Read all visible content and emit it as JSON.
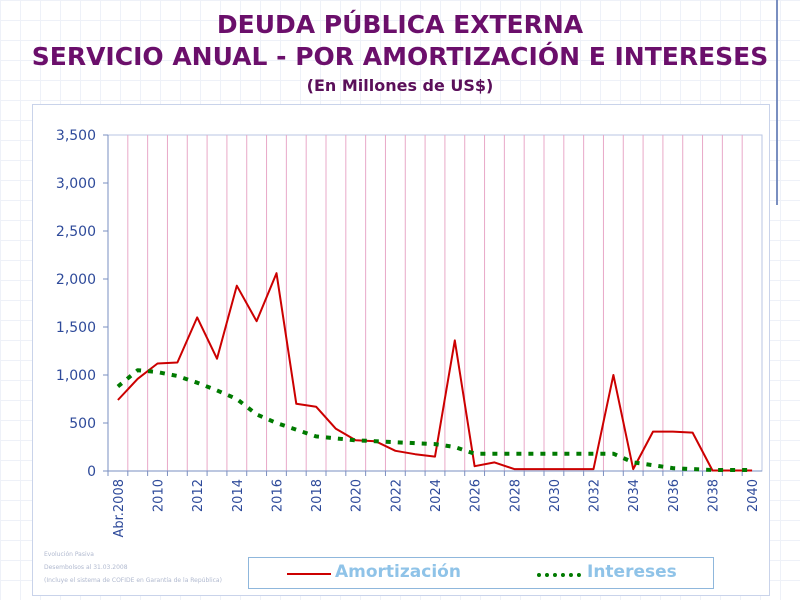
{
  "title_line1": "DEUDA PÚBLICA EXTERNA",
  "title_line2": "SERVICIO ANUAL - POR AMORTIZACIÓN E INTERESES",
  "subtitle": "(En Millones de US$)",
  "footnotes": [
    "Evolución Pasiva",
    "Desembolsos al 31.03.2008",
    "(Incluye el sistema de COFIDE en Garantía de la República)"
  ],
  "chart_data": {
    "type": "line",
    "title": "SERVICIO ANUAL - POR AMORTIZACIÓN E INTERESES",
    "ylabel": "(En Millones de US$)",
    "ylim": [
      0,
      3500
    ],
    "yticks": [
      0,
      500,
      1000,
      1500,
      2000,
      2500,
      3000,
      3500
    ],
    "ytick_labels": [
      "0",
      "500",
      "1,000",
      "1,500",
      "2,000",
      "2,500",
      "3,000",
      "3,500"
    ],
    "x": [
      "Abr.2008",
      "2009",
      "2010",
      "2011",
      "2012",
      "2013",
      "2014",
      "2015",
      "2016",
      "2017",
      "2018",
      "2019",
      "2020",
      "2021",
      "2022",
      "2023",
      "2024",
      "2025",
      "2026",
      "2027",
      "2028",
      "2029",
      "2030",
      "2031",
      "2032",
      "2033",
      "2034",
      "2035",
      "2036",
      "2037",
      "2038",
      "2039",
      "2040"
    ],
    "xtick_labels": [
      "Abr.2008",
      "",
      "2010",
      "",
      "2012",
      "",
      "2014",
      "",
      "2016",
      "",
      "2018",
      "",
      "2020",
      "",
      "2022",
      "",
      "2024",
      "",
      "2026",
      "",
      "2028",
      "",
      "2030",
      "",
      "2032",
      "",
      "2034",
      "",
      "2036",
      "",
      "2038",
      "",
      "2040"
    ],
    "series": [
      {
        "name": "Amortización",
        "color": "#cc0000",
        "style": "solid",
        "values": [
          740,
          960,
          1120,
          1130,
          1600,
          1170,
          1930,
          1560,
          2060,
          700,
          670,
          440,
          320,
          310,
          210,
          175,
          150,
          1360,
          50,
          90,
          20,
          20,
          20,
          20,
          20,
          1000,
          20,
          410,
          410,
          400,
          5,
          5,
          5
        ]
      },
      {
        "name": "Intereses",
        "color": "#007a00",
        "style": "dotted",
        "values": [
          880,
          1050,
          1030,
          990,
          920,
          840,
          750,
          590,
          500,
          430,
          360,
          340,
          320,
          310,
          300,
          290,
          280,
          250,
          180,
          180,
          180,
          180,
          180,
          180,
          180,
          180,
          90,
          60,
          30,
          20,
          10,
          10,
          10
        ]
      }
    ],
    "legend": [
      "Amortización",
      "Intereses"
    ],
    "legend_position": "bottom",
    "grid": "vertical"
  }
}
